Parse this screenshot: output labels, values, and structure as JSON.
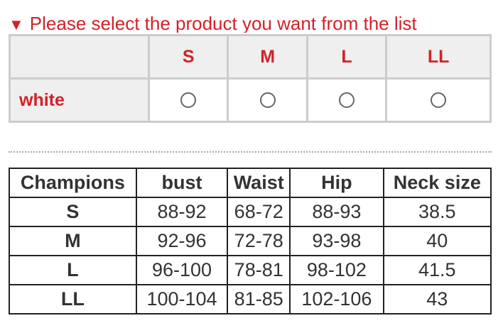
{
  "title": "Please select the product you want from the list",
  "selector": {
    "sizes": [
      "S",
      "M",
      "L",
      "LL"
    ],
    "colors": [
      {
        "label": "white"
      }
    ]
  },
  "size_table": {
    "headers": [
      "Champions",
      "bust",
      "Waist",
      "Hip",
      "Neck size"
    ],
    "rows": [
      [
        "S",
        "88-92",
        "68-72",
        "88-93",
        "38.5"
      ],
      [
        "M",
        "92-96",
        "72-78",
        "93-98",
        "40"
      ],
      [
        "L",
        "96-100",
        "78-81",
        "98-102",
        "41.5"
      ],
      [
        "LL",
        "100-104",
        "81-85",
        "102-106",
        "43"
      ]
    ]
  },
  "colors": {
    "accent": "#d42127"
  }
}
